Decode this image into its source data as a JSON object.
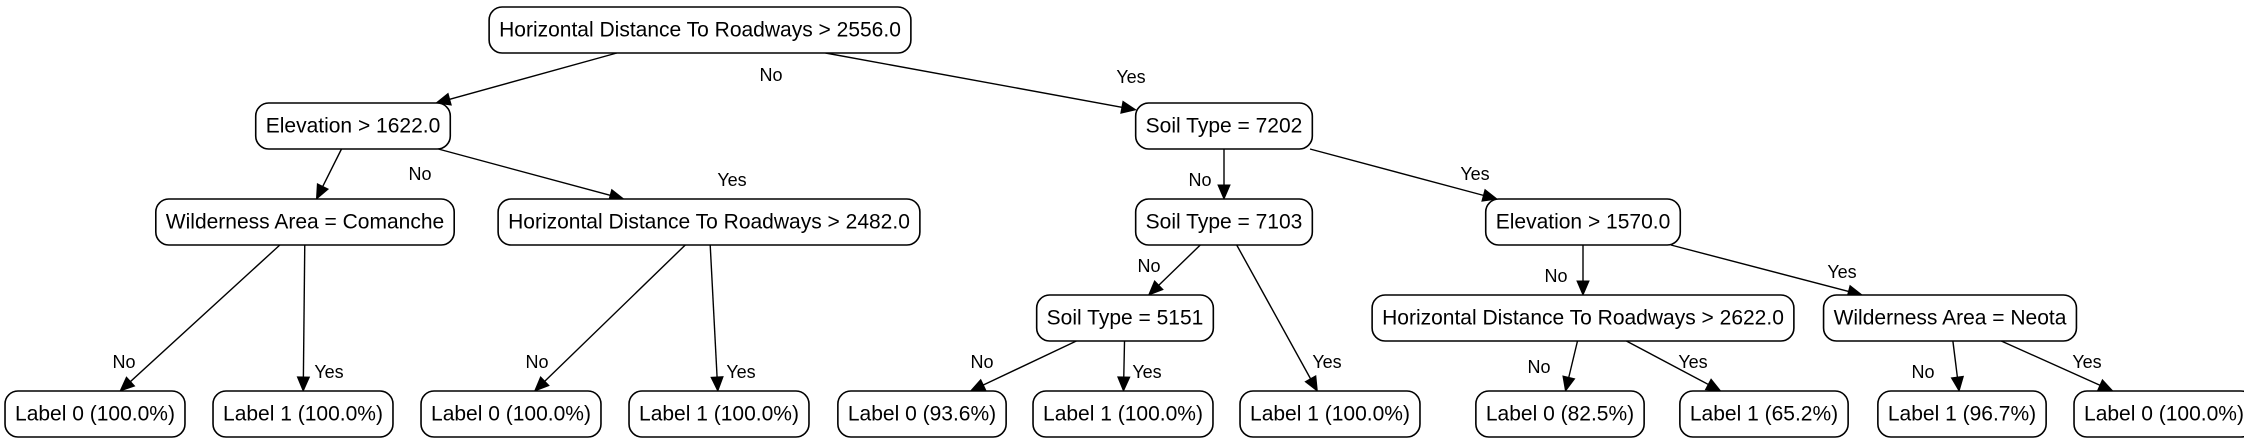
{
  "nodes": [
    {
      "id": "n0",
      "label": "Horizontal Distance To Roadways > 2556.0"
    },
    {
      "id": "n1",
      "label": "Elevation > 1622.0"
    },
    {
      "id": "n2",
      "label": "Soil Type = 7202"
    },
    {
      "id": "n3",
      "label": "Wilderness Area = Comanche"
    },
    {
      "id": "n4",
      "label": "Horizontal Distance To Roadways > 2482.0"
    },
    {
      "id": "n5",
      "label": "Soil Type = 7103"
    },
    {
      "id": "n6",
      "label": "Elevation > 1570.0"
    },
    {
      "id": "n7",
      "label": "Soil Type = 5151"
    },
    {
      "id": "n8",
      "label": "Horizontal Distance To Roadways > 2622.0"
    },
    {
      "id": "n9",
      "label": "Wilderness Area = Neota"
    },
    {
      "id": "l1",
      "label": "Label 0 (100.0%)"
    },
    {
      "id": "l2",
      "label": "Label 1 (100.0%)"
    },
    {
      "id": "l3",
      "label": "Label 0 (100.0%)"
    },
    {
      "id": "l4",
      "label": "Label 1 (100.0%)"
    },
    {
      "id": "l5",
      "label": "Label 0 (93.6%)"
    },
    {
      "id": "l6",
      "label": "Label 1 (100.0%)"
    },
    {
      "id": "l7",
      "label": "Label 1 (100.0%)"
    },
    {
      "id": "l8",
      "label": "Label 0 (82.5%)"
    },
    {
      "id": "l9",
      "label": "Label 1 (65.2%)"
    },
    {
      "id": "l10",
      "label": "Label 1 (96.7%)"
    },
    {
      "id": "l11",
      "label": "Label 0 (100.0%)"
    }
  ],
  "edges": [
    {
      "from": "n0",
      "to": "n1",
      "label": "No"
    },
    {
      "from": "n0",
      "to": "n2",
      "label": "Yes"
    },
    {
      "from": "n1",
      "to": "n3",
      "label": "No"
    },
    {
      "from": "n1",
      "to": "n4",
      "label": "Yes"
    },
    {
      "from": "n2",
      "to": "n5",
      "label": "No"
    },
    {
      "from": "n2",
      "to": "n6",
      "label": "Yes"
    },
    {
      "from": "n3",
      "to": "l1",
      "label": "No"
    },
    {
      "from": "n3",
      "to": "l2",
      "label": "Yes"
    },
    {
      "from": "n4",
      "to": "l3",
      "label": "No"
    },
    {
      "from": "n4",
      "to": "l4",
      "label": "Yes"
    },
    {
      "from": "n5",
      "to": "n7",
      "label": "No"
    },
    {
      "from": "n5",
      "to": "l7",
      "label": "Yes"
    },
    {
      "from": "n7",
      "to": "l5",
      "label": "No"
    },
    {
      "from": "n7",
      "to": "l6",
      "label": "Yes"
    },
    {
      "from": "n6",
      "to": "n8",
      "label": "No"
    },
    {
      "from": "n6",
      "to": "n9",
      "label": "Yes"
    },
    {
      "from": "n8",
      "to": "l8",
      "label": "No"
    },
    {
      "from": "n8",
      "to": "l9",
      "label": "Yes"
    },
    {
      "from": "n9",
      "to": "l10",
      "label": "No"
    },
    {
      "from": "n9",
      "to": "l11",
      "label": "Yes"
    }
  ]
}
